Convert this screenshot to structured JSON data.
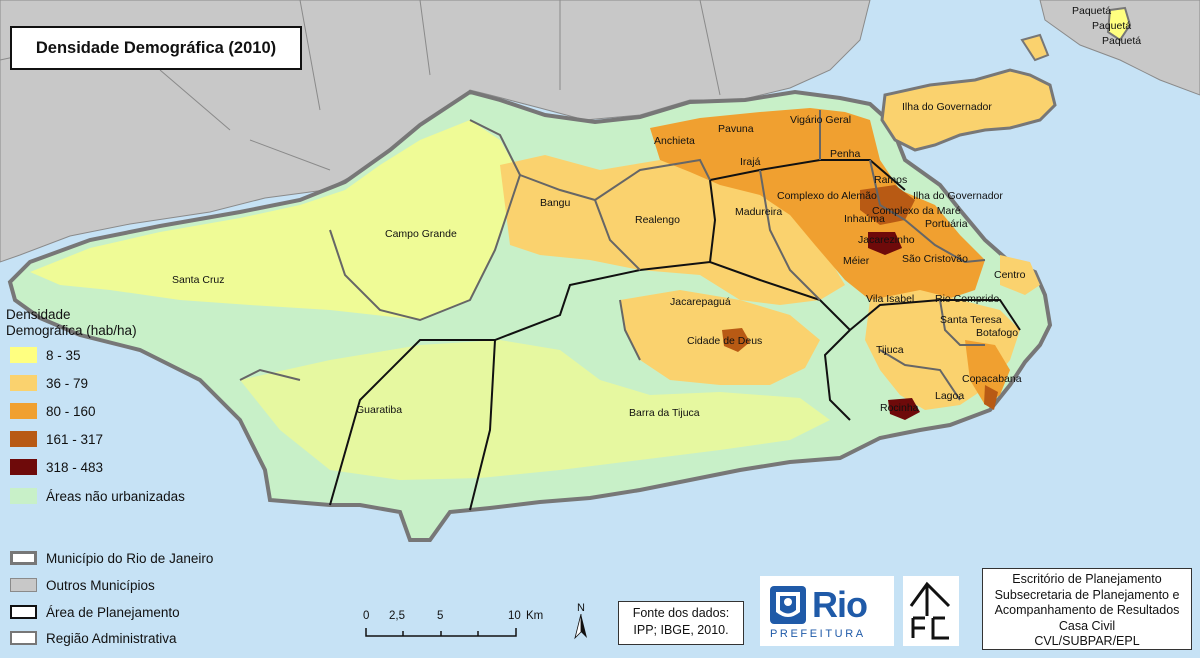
{
  "title": "Densidade Demográfica (2010)",
  "legend": {
    "heading_line1": "Densidade",
    "heading_line2": "Demográfica (hab/ha)",
    "density_classes": [
      {
        "label": "8 - 35",
        "color": "#ffff80"
      },
      {
        "label": "36 - 79",
        "color": "#fad26e"
      },
      {
        "label": "80 - 160",
        "color": "#f0a030"
      },
      {
        "label": "161 - 317",
        "color": "#b85a14"
      },
      {
        "label": "318 - 483",
        "color": "#6e0a0a"
      },
      {
        "label": "Áreas não urbanizadas",
        "color": "#c8f0c8"
      }
    ],
    "boundaries": [
      {
        "label": "Município do Rio de Janeiro"
      },
      {
        "label": "Outros Municípios"
      },
      {
        "label": "Área de Planejamento"
      },
      {
        "label": "Região Administrativa"
      }
    ]
  },
  "colors": {
    "water": "#c6e2f5",
    "other_municipalities": "#c8c8c8"
  },
  "region_labels": {
    "paqueta1": "Paquetá",
    "paqueta2": "Paquetá",
    "paqueta3": "Paquetá",
    "ilha": "Ilha do Governador",
    "anchieta": "Anchieta",
    "pavuna": "Pavuna",
    "vigario": "Vigário Geral",
    "penha": "Penha",
    "iraja": "Irajá",
    "ramos": "Ramos",
    "alemao": "Complexo do Alemão",
    "ilha2": "Ilha do Governador",
    "mare": "Complexo da Maré",
    "madureira": "Madureira",
    "inhauma": "Inhaúma",
    "portuaria": "Portuária",
    "jacarezinho": "Jacarezinho",
    "bangu": "Bangu",
    "realengo": "Realengo",
    "campo": "Campo Grande",
    "meier": "Méier",
    "saocris": "São Cristovão",
    "centro": "Centro",
    "santacruz": "Santa Cruz",
    "vilaisabel": "Vila Isabel",
    "riocomp": "Rio Comprido",
    "jacarepagua": "Jacarepaguá",
    "santateresa": "Santa Teresa",
    "botafogo": "Botafogo",
    "cidade": "Cidade de Deus",
    "tijuca": "Tijuca",
    "copacabana": "Copacabana",
    "lagoa": "Lagoa",
    "guaratiba": "Guaratiba",
    "barra": "Barra da Tijuca",
    "rocinha": "Rocinha"
  },
  "scale": {
    "ticks": [
      "0",
      "2,5",
      "5",
      "10"
    ],
    "unit": "Km",
    "north": "N"
  },
  "source": {
    "line1": "Fonte dos dados:",
    "line2": "IPP; IBGE, 2010."
  },
  "logo": {
    "rio": "Rio",
    "prefeitura": "PREFEITURA"
  },
  "office": {
    "line1": "Escritório de Planejamento",
    "line2": "Subsecretaria de Planejamento e",
    "line3": "Acompanhamento de Resultados",
    "line4": "Casa Civil",
    "line5": "CVL/SUBPAR/EPL"
  }
}
